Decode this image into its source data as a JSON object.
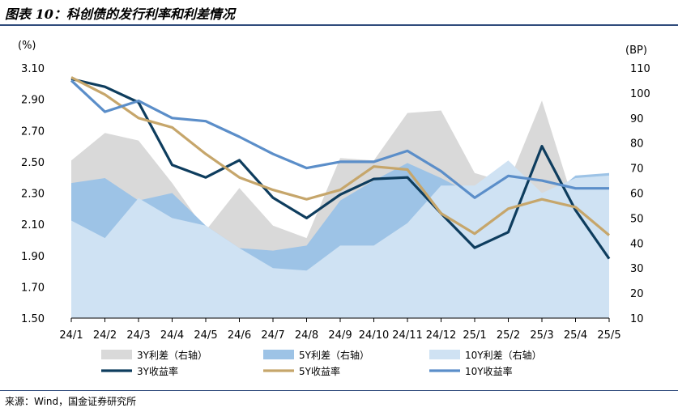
{
  "title": "图表 10：科创债的发行利率和利差情况",
  "source": "来源：Wind，国金证券研究所",
  "chart_data": {
    "type": "area+line",
    "categories": [
      "24/1",
      "24/2",
      "24/3",
      "24/4",
      "24/5",
      "24/6",
      "24/7",
      "24/8",
      "24/9",
      "24/10",
      "24/11",
      "24/12",
      "25/1",
      "25/2",
      "25/3",
      "25/4",
      "25/5"
    ],
    "left_axis": {
      "unit": "(%)",
      "min": 1.5,
      "max": 3.1,
      "ticks": [
        "1.50",
        "1.70",
        "1.90",
        "2.10",
        "2.30",
        "2.50",
        "2.70",
        "2.90",
        "3.10"
      ]
    },
    "right_axis": {
      "unit": "(BP)",
      "min": 10,
      "max": 110,
      "ticks": [
        "10",
        "20",
        "30",
        "40",
        "50",
        "60",
        "70",
        "80",
        "90",
        "100",
        "110"
      ]
    },
    "area_series": [
      {
        "name": "3Y利差（右轴）",
        "color": "#d9d9d9",
        "axis": "right",
        "values": [
          73,
          84,
          81,
          64,
          45,
          62,
          47,
          42,
          74,
          73,
          92,
          93,
          68,
          64,
          97,
          54,
          68
        ]
      },
      {
        "name": "5Y利差（右轴）",
        "color": "#9dc3e6",
        "axis": "right",
        "values": [
          64,
          66,
          57,
          60,
          47,
          38,
          37,
          39,
          57,
          65,
          72,
          66,
          59,
          66,
          56,
          67,
          68
        ]
      },
      {
        "name": "10Y利差（右轴）",
        "color": "#cfe2f3",
        "axis": "right",
        "values": [
          49,
          42,
          58,
          50,
          47,
          38,
          30,
          29,
          39,
          39,
          48,
          63,
          63,
          73,
          60,
          66,
          67
        ]
      }
    ],
    "line_series": [
      {
        "name": "3Y收益率",
        "color": "#0e3d5e",
        "axis": "left",
        "values": [
          3.03,
          2.98,
          2.88,
          2.48,
          2.4,
          2.51,
          2.27,
          2.14,
          2.29,
          2.39,
          2.4,
          2.17,
          1.95,
          2.05,
          2.6,
          2.19,
          1.88
        ]
      },
      {
        "name": "5Y收益率",
        "color": "#c6a66b",
        "axis": "left",
        "values": [
          3.04,
          2.93,
          2.78,
          2.72,
          2.55,
          2.4,
          2.32,
          2.26,
          2.32,
          2.47,
          2.45,
          2.17,
          2.04,
          2.2,
          2.26,
          2.21,
          2.03
        ]
      },
      {
        "name": "10Y收益率",
        "color": "#5b8ec9",
        "axis": "left",
        "values": [
          3.02,
          2.82,
          2.89,
          2.78,
          2.76,
          2.66,
          2.55,
          2.46,
          2.5,
          2.5,
          2.57,
          2.44,
          2.27,
          2.41,
          2.38,
          2.33,
          2.33
        ]
      }
    ]
  }
}
